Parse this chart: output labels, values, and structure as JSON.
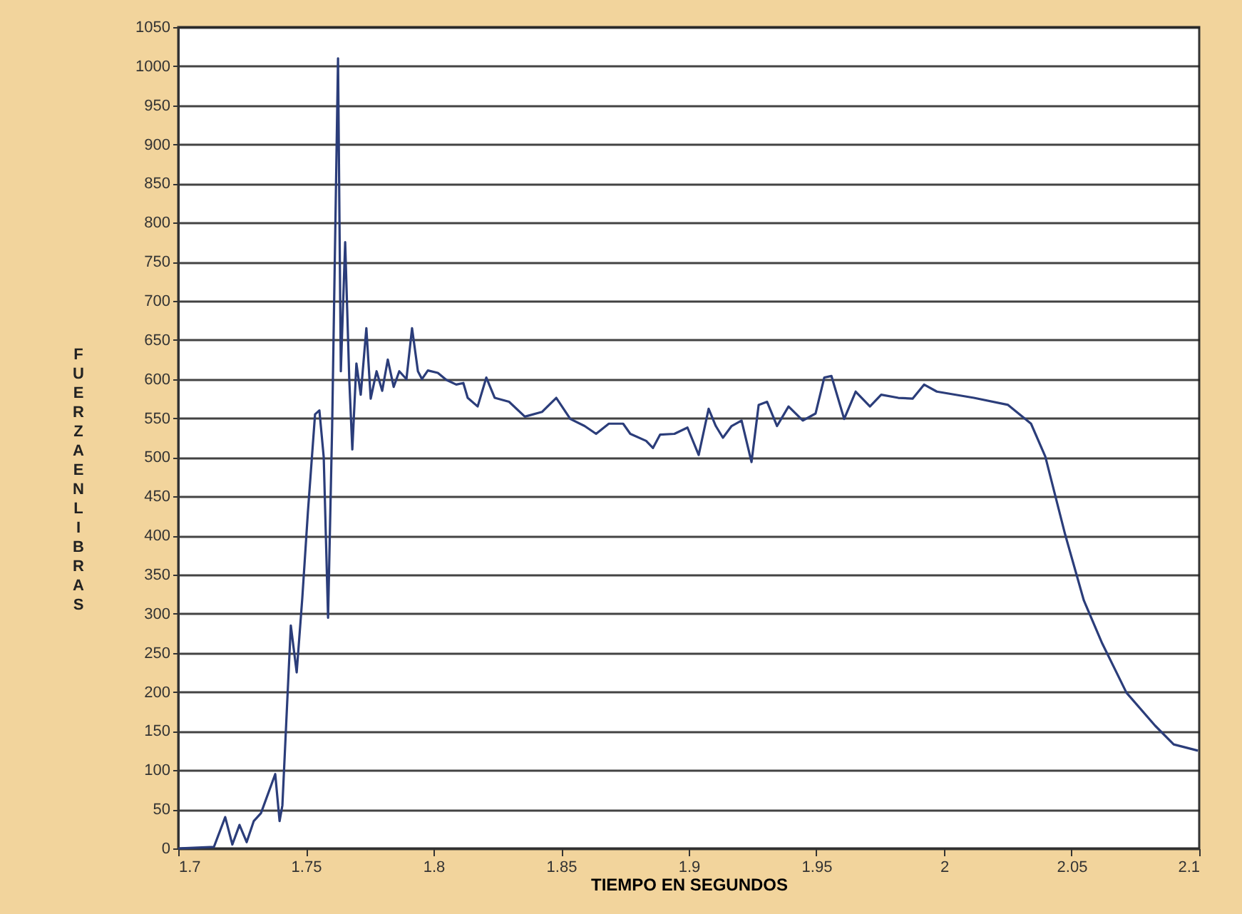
{
  "chart_data": {
    "type": "line",
    "xlabel": "TIEMPO EN SEGUNDOS",
    "ylabel": "FUERZA EN LIBRAS",
    "xlim": [
      1.7,
      2.1
    ],
    "xticks": [
      1.7,
      1.75,
      1.8,
      1.85,
      1.9,
      1.95,
      2,
      2.05,
      2.1
    ],
    "ylim": [
      0,
      1050
    ],
    "yticks": [
      0,
      50,
      100,
      150,
      200,
      250,
      300,
      350,
      400,
      450,
      500,
      550,
      600,
      650,
      700,
      750,
      800,
      850,
      900,
      950,
      1000,
      1050
    ],
    "grid": "y",
    "marker": "none",
    "line_style": "solid",
    "series": [
      {
        "color": "#2b3d7a",
        "x": [
          1.7,
          1.714,
          1.7184,
          1.7212,
          1.724,
          1.7268,
          1.7296,
          1.7324,
          1.738,
          1.7397,
          1.7408,
          1.7441,
          1.7464,
          1.7486,
          1.7508,
          1.7536,
          1.7553,
          1.757,
          1.7587,
          1.7603,
          1.7626,
          1.7637,
          1.7654,
          1.767,
          1.7682,
          1.7698,
          1.7715,
          1.7737,
          1.7754,
          1.7777,
          1.7799,
          1.7821,
          1.7844,
          1.7866,
          1.7894,
          1.7916,
          1.7939,
          1.7955,
          1.7978,
          1.8017,
          1.805,
          1.8089,
          1.8117,
          1.8134,
          1.8173,
          1.8207,
          1.824,
          1.8296,
          1.8358,
          1.8425,
          1.8481,
          1.8536,
          1.8592,
          1.8637,
          1.8687,
          1.8743,
          1.8771,
          1.8833,
          1.886,
          1.8888,
          1.8944,
          1.8995,
          1.9039,
          1.9078,
          1.9106,
          1.9134,
          1.9168,
          1.9207,
          1.9246,
          1.9274,
          1.9307,
          1.9346,
          1.9391,
          1.9447,
          1.9497,
          1.9531,
          1.9559,
          1.9609,
          1.9654,
          1.971,
          1.9754,
          1.9821,
          1.9877,
          1.9922,
          1.9972,
          2.0117,
          2.0251,
          2.0341,
          2.0397,
          2.0475,
          2.0548,
          2.062,
          2.0715,
          2.0827,
          2.09,
          2.0995
        ],
        "values": [
          0,
          2,
          40,
          5,
          30,
          8,
          35,
          45,
          95,
          35,
          55,
          285,
          225,
          320,
          430,
          555,
          560,
          500,
          295,
          540,
          1010,
          610,
          775,
          600,
          510,
          620,
          580,
          665,
          575,
          610,
          585,
          625,
          590,
          610,
          600,
          665,
          610,
          600,
          611,
          608,
          599,
          593,
          595,
          576,
          565,
          602,
          576,
          571,
          552,
          558,
          576,
          549,
          540,
          530,
          543,
          543,
          530,
          521,
          512,
          529,
          530,
          538,
          503,
          562,
          540,
          525,
          540,
          547,
          494,
          567,
          571,
          540,
          565,
          547,
          556,
          602,
          604,
          549,
          584,
          565,
          580,
          576,
          575,
          593,
          584,
          576,
          567,
          543,
          501,
          401,
          317,
          262,
          199,
          157,
          133,
          125
        ]
      }
    ]
  }
}
